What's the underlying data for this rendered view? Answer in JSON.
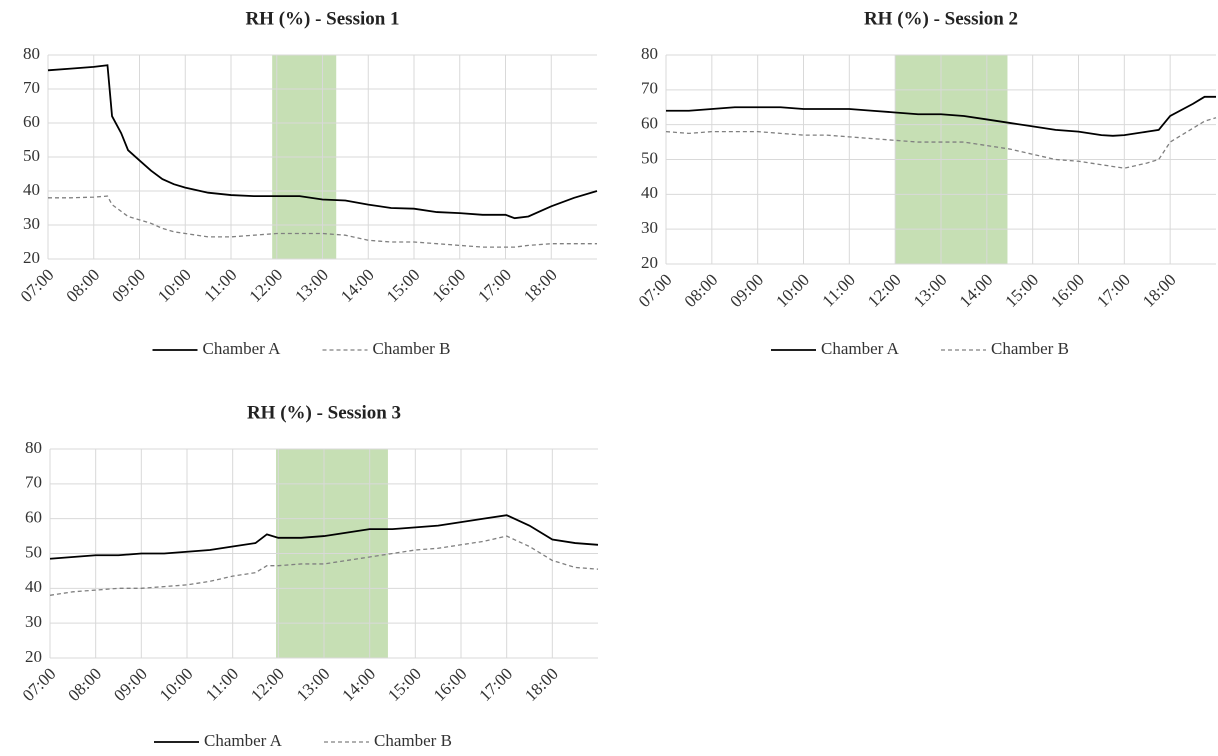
{
  "chart_data": [
    {
      "type": "line",
      "title": "RH (%) - Session 1",
      "x": [
        7,
        7.5,
        8,
        8.3,
        8.4,
        8.6,
        8.75,
        9,
        9.25,
        9.5,
        9.75,
        10,
        10.5,
        11,
        11.5,
        12,
        12.5,
        13,
        13.5,
        14,
        14.5,
        15,
        15.5,
        16,
        16.5,
        17,
        17.2,
        17.5,
        18,
        18.5,
        19
      ],
      "series": [
        {
          "name": "Chamber A",
          "color": "#000000",
          "style": "solid",
          "values": [
            75.5,
            76,
            76.5,
            77,
            62,
            57,
            52,
            49,
            46,
            43.5,
            42,
            41,
            39.5,
            38.8,
            38.5,
            38.5,
            38.5,
            37.5,
            37.2,
            36,
            35,
            34.8,
            33.8,
            33.5,
            33,
            33,
            32,
            32.5,
            35.5,
            38,
            40
          ]
        },
        {
          "name": "Chamber B",
          "color": "#808080",
          "style": "dashed",
          "values": [
            38,
            38,
            38.2,
            38.5,
            36,
            34,
            32.5,
            31.5,
            30.5,
            29,
            28,
            27.5,
            26.5,
            26.5,
            27,
            27.5,
            27.5,
            27.5,
            27,
            25.5,
            25,
            25,
            24.5,
            24,
            23.5,
            23.5,
            23.5,
            24,
            24.5,
            24.5,
            24.5
          ]
        }
      ],
      "highlight": [
        11.9,
        13.3
      ],
      "highlight_color": "#c6dfb4",
      "xlim": [
        7,
        19
      ],
      "xticks": [
        {
          "value": 7,
          "label": "07:00"
        },
        {
          "value": 8,
          "label": "08:00"
        },
        {
          "value": 9,
          "label": "09:00"
        },
        {
          "value": 10,
          "label": "10:00"
        },
        {
          "value": 11,
          "label": "11:00"
        },
        {
          "value": 12,
          "label": "12:00"
        },
        {
          "value": 13,
          "label": "13:00"
        },
        {
          "value": 14,
          "label": "14:00"
        },
        {
          "value": 15,
          "label": "15:00"
        },
        {
          "value": 16,
          "label": "16:00"
        },
        {
          "value": 17,
          "label": "17:00"
        },
        {
          "value": 18,
          "label": "18:00"
        }
      ],
      "ylim": [
        20,
        80
      ],
      "yticks": [
        20,
        30,
        40,
        50,
        60,
        70,
        80
      ],
      "grid": true
    },
    {
      "type": "line",
      "title": "RH (%) - Session 2",
      "x": [
        7,
        7.5,
        8,
        8.5,
        9,
        9.5,
        10,
        10.5,
        11,
        11.5,
        12,
        12.5,
        13,
        13.5,
        14,
        14.5,
        15,
        15.5,
        16,
        16.5,
        16.75,
        17,
        17.5,
        17.75,
        18,
        18.5,
        18.75,
        19
      ],
      "series": [
        {
          "name": "Chamber A",
          "color": "#000000",
          "style": "solid",
          "values": [
            64,
            64,
            64.5,
            65,
            65,
            65,
            64.5,
            64.5,
            64.5,
            64,
            63.5,
            63,
            63,
            62.5,
            61.5,
            60.5,
            59.5,
            58.5,
            58,
            57,
            56.8,
            57,
            58,
            58.5,
            62.5,
            66,
            68,
            68
          ]
        },
        {
          "name": "Chamber B",
          "color": "#808080",
          "style": "dashed",
          "values": [
            58,
            57.5,
            58,
            58,
            58,
            57.5,
            57,
            57,
            56.5,
            56,
            55.5,
            55,
            55,
            55,
            54,
            53,
            51.5,
            50,
            49.5,
            48.5,
            48,
            47.5,
            49,
            50,
            55,
            59,
            61,
            62
          ]
        }
      ],
      "highlight": [
        12.0,
        14.45
      ],
      "highlight_color": "#c6dfb4",
      "xlim": [
        7,
        19
      ],
      "xticks": [
        {
          "value": 7,
          "label": "07:00"
        },
        {
          "value": 8,
          "label": "08:00"
        },
        {
          "value": 9,
          "label": "09:00"
        },
        {
          "value": 10,
          "label": "10:00"
        },
        {
          "value": 11,
          "label": "11:00"
        },
        {
          "value": 12,
          "label": "12:00"
        },
        {
          "value": 13,
          "label": "13:00"
        },
        {
          "value": 14,
          "label": "14:00"
        },
        {
          "value": 15,
          "label": "15:00"
        },
        {
          "value": 16,
          "label": "16:00"
        },
        {
          "value": 17,
          "label": "17:00"
        },
        {
          "value": 18,
          "label": "18:00"
        }
      ],
      "ylim": [
        20,
        80
      ],
      "yticks": [
        20,
        30,
        40,
        50,
        60,
        70,
        80
      ],
      "grid": true
    },
    {
      "type": "line",
      "title": "RH (%) - Session 3",
      "x": [
        7,
        7.5,
        8,
        8.5,
        9,
        9.5,
        10,
        10.5,
        11,
        11.5,
        11.75,
        12,
        12.5,
        13,
        13.5,
        14,
        14.5,
        15,
        15.5,
        16,
        16.5,
        17,
        17.5,
        18,
        18.5,
        19
      ],
      "series": [
        {
          "name": "Chamber A",
          "color": "#000000",
          "style": "solid",
          "values": [
            48.5,
            49,
            49.5,
            49.5,
            50,
            50,
            50.5,
            51,
            52,
            53,
            55.5,
            54.5,
            54.5,
            55,
            56,
            57,
            57,
            57.5,
            58,
            59,
            60,
            61,
            58,
            54,
            53,
            52.5
          ]
        },
        {
          "name": "Chamber B",
          "color": "#808080",
          "style": "dashed",
          "values": [
            38,
            39,
            39.5,
            40,
            40,
            40.5,
            41,
            42,
            43.5,
            44.5,
            46.5,
            46.5,
            47,
            47,
            48,
            49,
            50,
            51,
            51.5,
            52.5,
            53.5,
            55,
            52,
            48,
            46,
            45.5
          ]
        }
      ],
      "highlight": [
        11.95,
        14.4
      ],
      "highlight_color": "#c6dfb4",
      "xlim": [
        7,
        19
      ],
      "xticks": [
        {
          "value": 7,
          "label": "07:00"
        },
        {
          "value": 8,
          "label": "08:00"
        },
        {
          "value": 9,
          "label": "09:00"
        },
        {
          "value": 10,
          "label": "10:00"
        },
        {
          "value": 11,
          "label": "11:00"
        },
        {
          "value": 12,
          "label": "12:00"
        },
        {
          "value": 13,
          "label": "13:00"
        },
        {
          "value": 14,
          "label": "14:00"
        },
        {
          "value": 15,
          "label": "15:00"
        },
        {
          "value": 16,
          "label": "16:00"
        },
        {
          "value": 17,
          "label": "17:00"
        },
        {
          "value": 18,
          "label": "18:00"
        }
      ],
      "ylim": [
        20,
        80
      ],
      "yticks": [
        20,
        30,
        40,
        50,
        60,
        70,
        80
      ],
      "grid": true
    }
  ]
}
